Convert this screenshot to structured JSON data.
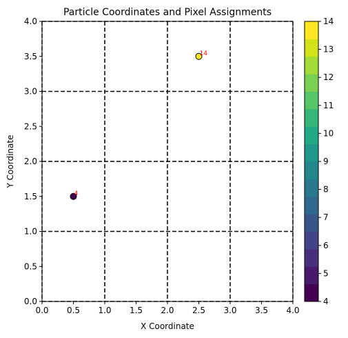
{
  "chart_data": {
    "type": "scatter",
    "title": "Particle Coordinates and Pixel Assignments",
    "xlabel": "X Coordinate",
    "ylabel": "Y Coordinate",
    "xlim": [
      0,
      4
    ],
    "ylim": [
      0,
      4
    ],
    "x_ticks": [
      "0.0",
      "0.5",
      "1.0",
      "1.5",
      "2.0",
      "2.5",
      "3.0",
      "3.5",
      "4.0"
    ],
    "y_ticks": [
      "0.0",
      "0.5",
      "1.0",
      "1.5",
      "2.0",
      "2.5",
      "3.0",
      "3.5",
      "4.0"
    ],
    "grid_lines": [
      0,
      1,
      2,
      3,
      4
    ],
    "grid_style": "dashed",
    "points": [
      {
        "x": 0.5,
        "y": 1.5,
        "value": 4,
        "label": "4"
      },
      {
        "x": 2.5,
        "y": 3.5,
        "value": 14,
        "label": "14"
      }
    ],
    "colorbar": {
      "min": 4,
      "max": 14,
      "ticks": [
        "4",
        "5",
        "6",
        "7",
        "8",
        "9",
        "10",
        "11",
        "12",
        "13",
        "14"
      ],
      "colormap": "viridis"
    },
    "label_color": "#ff0000",
    "grid_color": "#000000"
  }
}
